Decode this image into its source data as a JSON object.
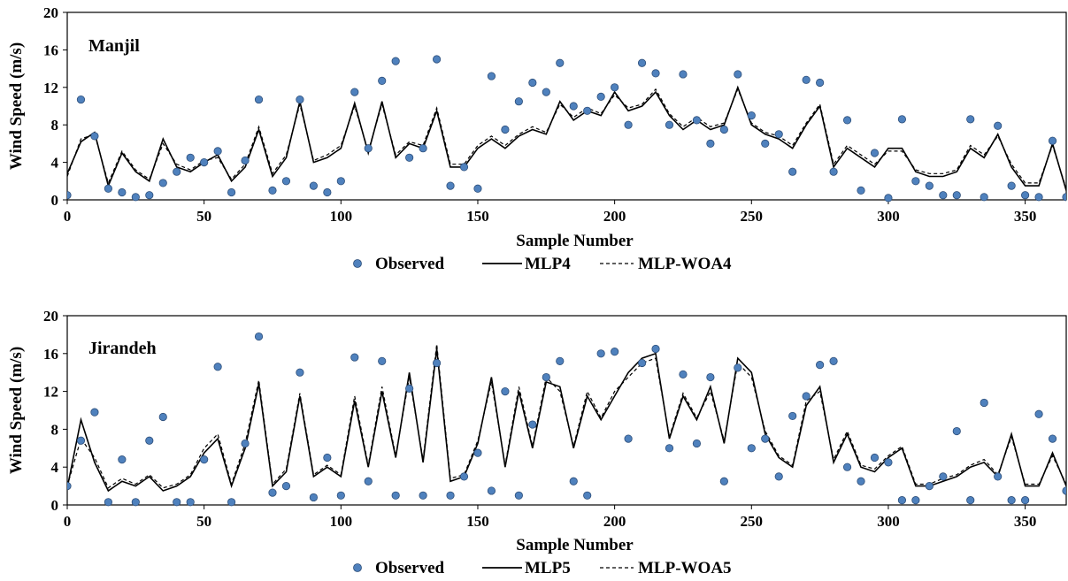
{
  "chart_data": [
    {
      "type": "scatter",
      "title": "Manjil",
      "xlabel": "Sample Number",
      "ylabel": "Wind Speed (m/s)",
      "xlim": [
        0,
        365
      ],
      "ylim": [
        0,
        20
      ],
      "x_ticks": [
        0,
        50,
        100,
        150,
        200,
        250,
        300,
        350
      ],
      "y_ticks": [
        0,
        4,
        8,
        12,
        16,
        20
      ],
      "grid": false,
      "legend_position": "bottom-center",
      "colors": {
        "observed_fill": "#4f81bd",
        "observed_edge": "#2e4f7a",
        "lines": "#000000"
      },
      "series": [
        {
          "name": "Observed",
          "style": "marker",
          "x": [
            0,
            5,
            10,
            15,
            20,
            25,
            30,
            35,
            40,
            45,
            50,
            55,
            60,
            65,
            70,
            75,
            80,
            85,
            90,
            95,
            100,
            105,
            110,
            115,
            120,
            125,
            130,
            135,
            140,
            145,
            150,
            155,
            160,
            165,
            170,
            175,
            180,
            185,
            190,
            195,
            200,
            205,
            210,
            215,
            220,
            225,
            230,
            235,
            240,
            245,
            250,
            255,
            260,
            265,
            270,
            275,
            280,
            285,
            290,
            295,
            300,
            305,
            310,
            315,
            320,
            325,
            330,
            335,
            340,
            345,
            350,
            355,
            360,
            365
          ],
          "values": [
            0.5,
            10.7,
            6.8,
            1.2,
            0.8,
            0.3,
            0.5,
            1.8,
            3.0,
            4.5,
            4.0,
            5.2,
            0.8,
            4.2,
            10.7,
            1.0,
            2.0,
            10.7,
            1.5,
            0.8,
            2.0,
            11.5,
            5.5,
            12.7,
            14.8,
            4.5,
            5.5,
            15.0,
            1.5,
            3.5,
            1.2,
            13.2,
            7.5,
            10.5,
            12.5,
            11.5,
            14.6,
            10.0,
            9.5,
            11.0,
            12.0,
            8.0,
            14.6,
            13.5,
            8.0,
            13.4,
            8.5,
            6.0,
            7.5,
            13.4,
            9.0,
            6.0,
            7.0,
            3.0,
            12.8,
            12.5,
            3.0,
            8.5,
            1.0,
            5.0,
            0.2,
            8.6,
            2.0,
            1.5,
            0.5,
            0.5,
            8.6,
            0.3,
            7.9,
            1.5,
            0.5,
            0.3,
            6.3,
            0.3
          ]
        },
        {
          "name": "MLP4",
          "style": "solid",
          "x": [
            0,
            5,
            10,
            15,
            20,
            25,
            30,
            35,
            40,
            45,
            50,
            55,
            60,
            65,
            70,
            75,
            80,
            85,
            90,
            95,
            100,
            105,
            110,
            115,
            120,
            125,
            130,
            135,
            140,
            145,
            150,
            155,
            160,
            165,
            170,
            175,
            180,
            185,
            190,
            195,
            200,
            205,
            210,
            215,
            220,
            225,
            230,
            235,
            240,
            245,
            250,
            255,
            260,
            265,
            270,
            275,
            280,
            285,
            290,
            295,
            300,
            305,
            310,
            315,
            320,
            325,
            330,
            335,
            340,
            345,
            350,
            355,
            360,
            365
          ],
          "values": [
            2.8,
            6.2,
            7.2,
            1.5,
            5.0,
            3.0,
            2.0,
            6.5,
            3.5,
            3.0,
            4.0,
            4.8,
            2.0,
            3.5,
            7.5,
            2.5,
            4.5,
            10.5,
            4.0,
            4.5,
            5.5,
            10.3,
            5.0,
            10.5,
            4.5,
            6.0,
            5.5,
            9.5,
            3.5,
            3.5,
            5.5,
            6.5,
            5.5,
            6.8,
            7.5,
            7.0,
            10.5,
            8.5,
            9.5,
            9.0,
            11.5,
            9.5,
            10.0,
            11.5,
            9.0,
            7.5,
            8.5,
            7.5,
            8.0,
            12.0,
            8.0,
            7.0,
            6.5,
            5.5,
            8.0,
            10.0,
            3.5,
            5.5,
            4.5,
            3.5,
            5.5,
            5.5,
            3.0,
            2.5,
            2.5,
            3.0,
            5.5,
            4.5,
            7.0,
            3.5,
            1.5,
            1.5,
            6.0,
            1.0
          ]
        },
        {
          "name": "MLP-WOA4",
          "style": "dashed",
          "x": [
            0,
            5,
            10,
            15,
            20,
            25,
            30,
            35,
            40,
            45,
            50,
            55,
            60,
            65,
            70,
            75,
            80,
            85,
            90,
            95,
            100,
            105,
            110,
            115,
            120,
            125,
            130,
            135,
            140,
            145,
            150,
            155,
            160,
            165,
            170,
            175,
            180,
            185,
            190,
            195,
            200,
            205,
            210,
            215,
            220,
            225,
            230,
            235,
            240,
            245,
            250,
            255,
            260,
            265,
            270,
            275,
            280,
            285,
            290,
            295,
            300,
            305,
            310,
            315,
            320,
            325,
            330,
            335,
            340,
            345,
            350,
            355,
            360,
            365
          ],
          "values": [
            2.5,
            6.5,
            7.0,
            1.8,
            5.2,
            3.2,
            2.2,
            6.0,
            3.8,
            3.2,
            4.2,
            4.5,
            2.2,
            3.8,
            7.8,
            2.8,
            4.8,
            10.2,
            4.2,
            4.8,
            5.8,
            10.0,
            5.2,
            10.2,
            4.8,
            6.2,
            5.8,
            9.8,
            3.8,
            3.8,
            5.8,
            6.8,
            5.8,
            7.0,
            7.8,
            7.2,
            10.2,
            8.8,
            9.8,
            9.2,
            11.2,
            9.8,
            10.2,
            11.8,
            9.2,
            7.8,
            8.8,
            7.8,
            8.2,
            11.8,
            8.2,
            7.2,
            6.8,
            5.8,
            8.2,
            10.2,
            3.8,
            5.8,
            4.8,
            3.8,
            5.2,
            5.2,
            3.2,
            2.8,
            2.8,
            3.2,
            5.8,
            4.8,
            6.8,
            3.8,
            1.8,
            1.8,
            5.8,
            1.2
          ]
        }
      ]
    },
    {
      "type": "scatter",
      "title": "Jirandeh",
      "xlabel": "Sample Number",
      "ylabel": "Wind Speed (m/s)",
      "xlim": [
        0,
        365
      ],
      "ylim": [
        0,
        20
      ],
      "x_ticks": [
        0,
        50,
        100,
        150,
        200,
        250,
        300,
        350
      ],
      "y_ticks": [
        0,
        4,
        8,
        12,
        16,
        20
      ],
      "grid": false,
      "legend_position": "bottom-center",
      "colors": {
        "observed_fill": "#4f81bd",
        "observed_edge": "#2e4f7a",
        "lines": "#000000"
      },
      "series": [
        {
          "name": "Observed",
          "style": "marker",
          "x": [
            0,
            5,
            10,
            15,
            20,
            25,
            30,
            35,
            40,
            45,
            50,
            55,
            60,
            65,
            70,
            75,
            80,
            85,
            90,
            95,
            100,
            105,
            110,
            115,
            120,
            125,
            130,
            135,
            140,
            145,
            150,
            155,
            160,
            165,
            170,
            175,
            180,
            185,
            190,
            195,
            200,
            205,
            210,
            215,
            220,
            225,
            230,
            235,
            240,
            245,
            250,
            255,
            260,
            265,
            270,
            275,
            280,
            285,
            290,
            295,
            300,
            305,
            310,
            315,
            320,
            325,
            330,
            335,
            340,
            345,
            350,
            355,
            360,
            365
          ],
          "values": [
            2.0,
            6.8,
            9.8,
            0.3,
            4.8,
            0.3,
            6.8,
            9.3,
            0.3,
            0.3,
            4.8,
            14.6,
            0.3,
            6.5,
            17.8,
            1.3,
            2.0,
            14.0,
            0.8,
            5.0,
            1.0,
            15.6,
            2.5,
            15.2,
            1.0,
            12.3,
            1.0,
            15.0,
            1.0,
            3.0,
            5.5,
            1.5,
            12.0,
            1.0,
            8.5,
            13.5,
            15.2,
            2.5,
            1.0,
            16.0,
            16.2,
            7.0,
            15.0,
            16.5,
            6.0,
            13.8,
            6.5,
            13.5,
            2.5,
            14.5,
            6.0,
            7.0,
            3.0,
            9.4,
            11.5,
            14.8,
            15.2,
            4.0,
            2.5,
            5.0,
            4.5,
            0.5,
            0.5,
            2.0,
            3.0,
            7.8,
            0.5,
            10.8,
            3.0,
            0.5,
            0.5,
            9.6,
            7.0,
            1.5
          ]
        },
        {
          "name": "MLP5",
          "style": "solid",
          "x": [
            0,
            5,
            10,
            15,
            20,
            25,
            30,
            35,
            40,
            45,
            50,
            55,
            60,
            65,
            70,
            75,
            80,
            85,
            90,
            95,
            100,
            105,
            110,
            115,
            120,
            125,
            130,
            135,
            140,
            145,
            150,
            155,
            160,
            165,
            170,
            175,
            180,
            185,
            190,
            195,
            200,
            205,
            210,
            215,
            220,
            225,
            230,
            235,
            240,
            245,
            250,
            255,
            260,
            265,
            270,
            275,
            280,
            285,
            290,
            295,
            300,
            305,
            310,
            315,
            320,
            325,
            330,
            335,
            340,
            345,
            350,
            355,
            360,
            365
          ],
          "values": [
            1.8,
            9.0,
            4.5,
            1.5,
            2.5,
            2.0,
            3.0,
            1.5,
            2.0,
            3.0,
            5.5,
            7.0,
            2.0,
            6.0,
            12.8,
            2.0,
            3.5,
            11.5,
            3.0,
            4.0,
            3.0,
            11.0,
            4.0,
            12.0,
            5.0,
            14.0,
            4.5,
            16.5,
            2.5,
            3.0,
            6.5,
            13.5,
            4.0,
            12.0,
            6.0,
            13.0,
            12.5,
            6.0,
            11.5,
            9.0,
            11.5,
            14.0,
            15.5,
            16.0,
            7.0,
            11.5,
            9.0,
            12.5,
            6.5,
            15.5,
            14.0,
            7.5,
            5.0,
            4.0,
            10.5,
            12.5,
            4.5,
            7.5,
            4.0,
            3.5,
            5.0,
            6.0,
            2.0,
            2.0,
            2.5,
            3.0,
            4.0,
            4.5,
            3.0,
            7.5,
            2.0,
            2.0,
            5.5,
            2.0
          ]
        },
        {
          "name": "MLP-WOA5",
          "style": "dashed",
          "x": [
            0,
            5,
            10,
            15,
            20,
            25,
            30,
            35,
            40,
            45,
            50,
            55,
            60,
            65,
            70,
            75,
            80,
            85,
            90,
            95,
            100,
            105,
            110,
            115,
            120,
            125,
            130,
            135,
            140,
            145,
            150,
            155,
            160,
            165,
            170,
            175,
            180,
            185,
            190,
            195,
            200,
            205,
            210,
            215,
            220,
            225,
            230,
            235,
            240,
            245,
            250,
            255,
            260,
            265,
            270,
            275,
            280,
            285,
            290,
            295,
            300,
            305,
            310,
            315,
            320,
            325,
            330,
            335,
            340,
            345,
            350,
            355,
            360,
            365
          ],
          "values": [
            2.0,
            7.0,
            5.0,
            1.8,
            2.8,
            2.2,
            3.2,
            1.8,
            2.2,
            3.2,
            6.0,
            7.5,
            2.2,
            6.5,
            13.2,
            2.2,
            3.8,
            11.8,
            3.2,
            4.2,
            3.2,
            11.5,
            4.2,
            12.5,
            5.2,
            13.5,
            4.8,
            17.0,
            2.8,
            3.2,
            6.8,
            13.0,
            4.2,
            12.5,
            6.2,
            13.5,
            12.0,
            6.2,
            12.0,
            9.2,
            12.0,
            13.5,
            15.0,
            15.5,
            7.2,
            11.8,
            9.2,
            12.0,
            6.8,
            15.0,
            13.5,
            7.8,
            5.2,
            4.2,
            11.0,
            12.0,
            4.8,
            7.8,
            4.2,
            3.8,
            5.2,
            6.2,
            2.2,
            2.2,
            2.8,
            3.2,
            4.2,
            4.8,
            3.2,
            7.2,
            2.2,
            2.2,
            5.2,
            2.2
          ]
        }
      ]
    }
  ]
}
